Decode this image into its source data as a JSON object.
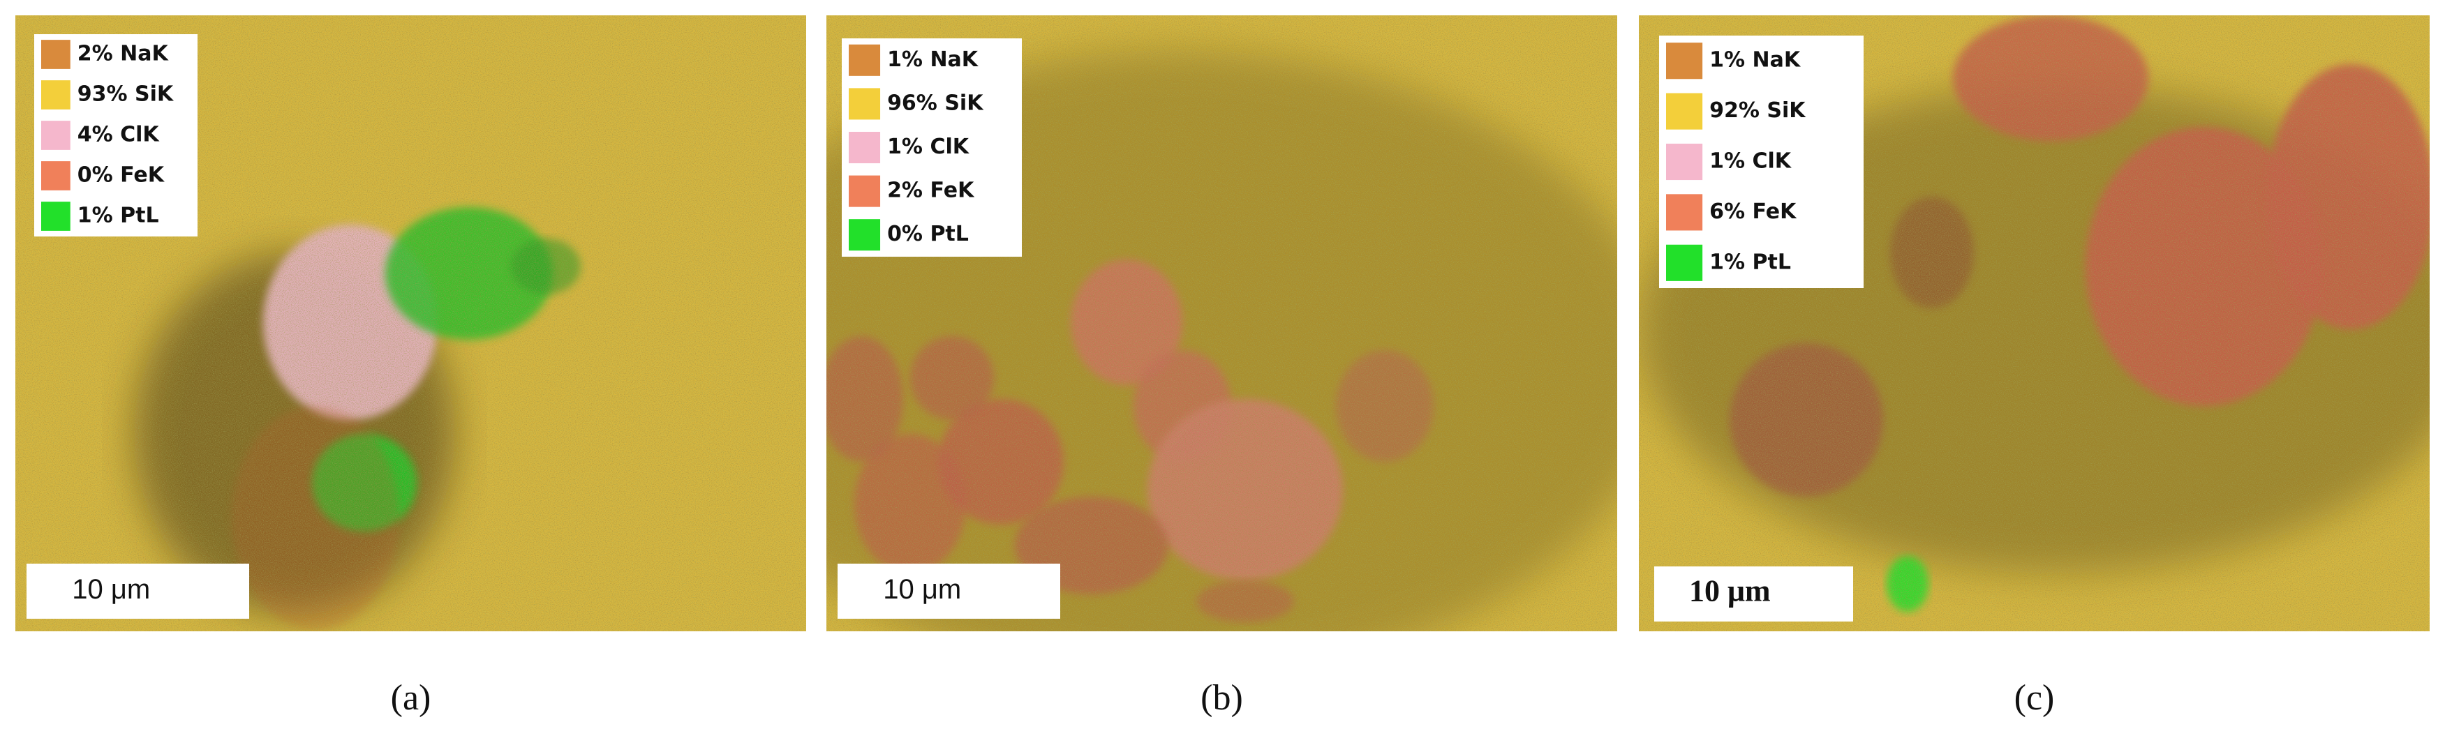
{
  "panels": [
    {
      "label": "(a)",
      "legend": [
        "2% NaK",
        "93% SiK",
        "4% ClK",
        "0% FeK",
        "1% PtL"
      ],
      "scale_bar": "10 μm"
    },
    {
      "label": "(b)",
      "legend": [
        "1% NaK",
        "96% SiK",
        "1% ClK",
        "2% FeK",
        "0% PtL"
      ],
      "scale_bar": "10 μm"
    },
    {
      "label": "(c)",
      "legend": [
        "1% NaK",
        "92% SiK",
        "1% ClK",
        "6% FeK",
        "1% PtL"
      ],
      "scale_bar": "10 μm"
    }
  ]
}
